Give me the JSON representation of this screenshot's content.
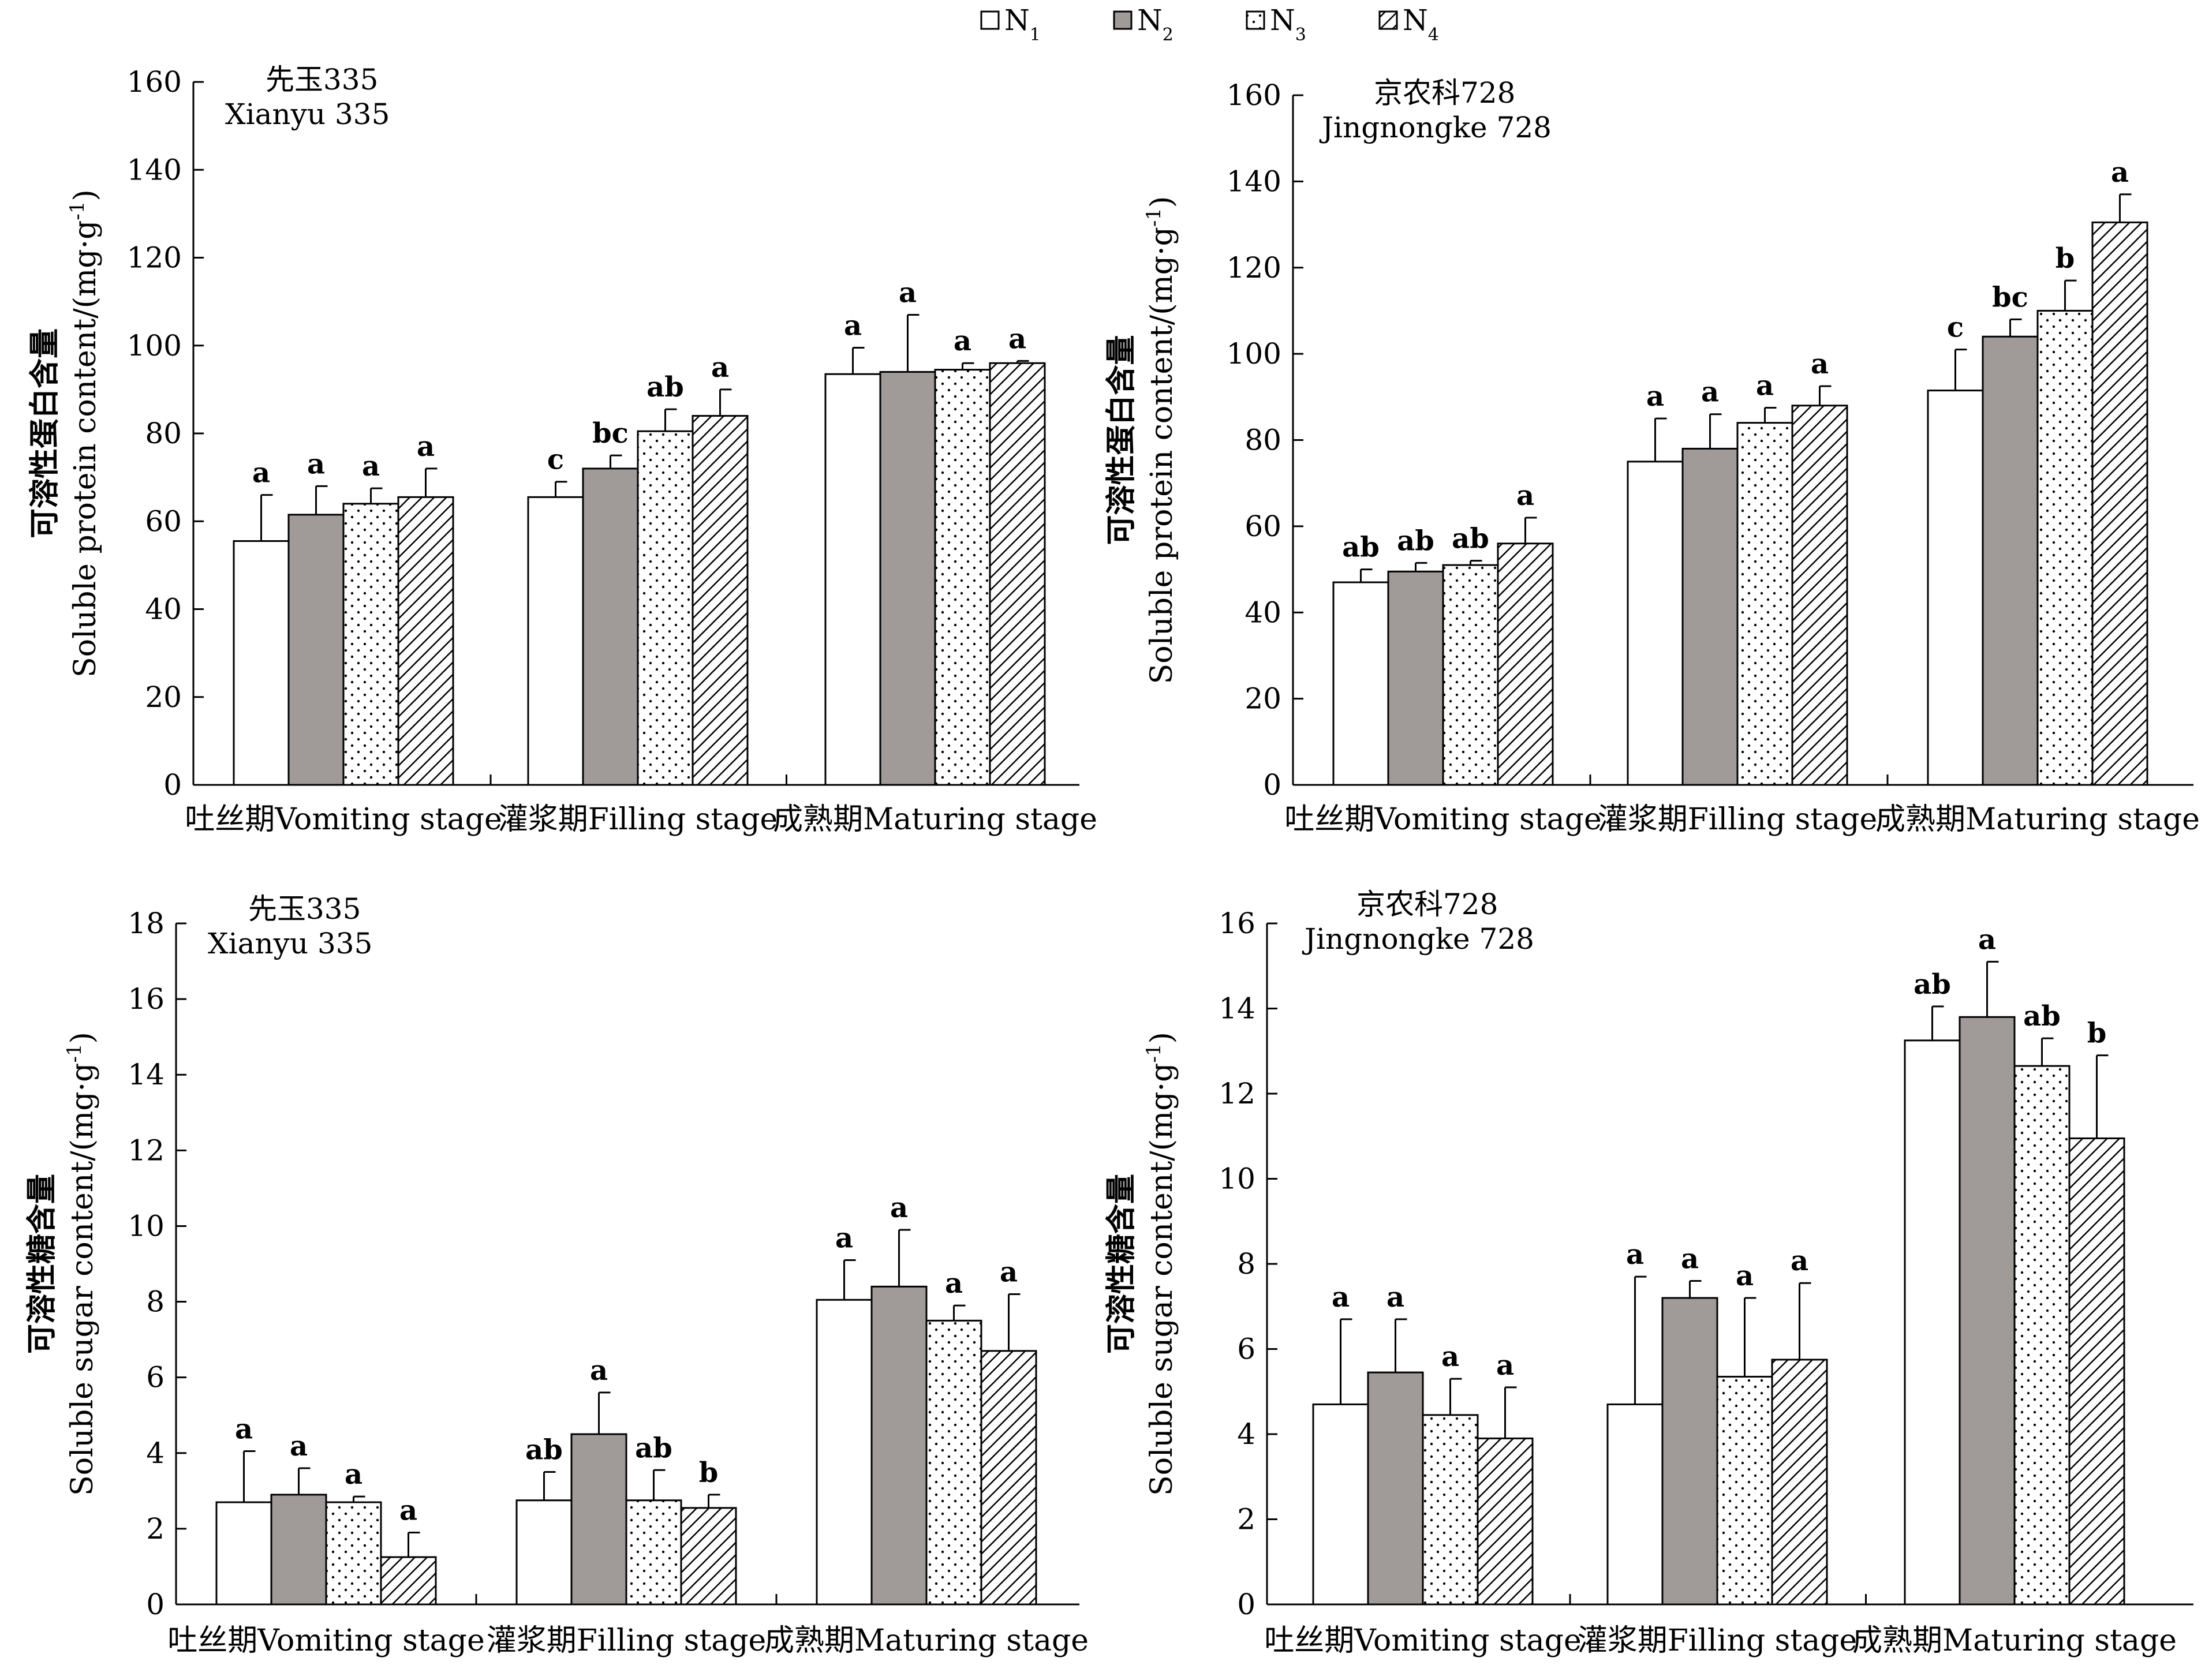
{
  "legend": {
    "items": [
      {
        "label": "N",
        "sub": "1",
        "pattern": "blank"
      },
      {
        "label": "N",
        "sub": "2",
        "pattern": "gray"
      },
      {
        "label": "N",
        "sub": "3",
        "pattern": "dots"
      },
      {
        "label": "N",
        "sub": "4",
        "pattern": "hatch"
      }
    ]
  },
  "colors": {
    "n2_fill": "#a09a99",
    "axis": "#000000"
  },
  "chart_data": [
    {
      "type": "bar",
      "title": "先玉335",
      "subtitle": "Xianyu 335",
      "ylabel_cn": "可溶性蛋白含量",
      "ylabel_en": "Soluble protein content/(mg·g",
      "ylabel_sup": "-1",
      "ylabel_tail": ")",
      "ylim": [
        0,
        160
      ],
      "yticks": [
        "0",
        "20",
        "40",
        "60",
        "80",
        "100",
        "120",
        "140",
        "160"
      ],
      "categories": [
        "吐丝期Vomiting stage",
        "灌浆期Filling stage",
        "成熟期Maturing stage"
      ],
      "series": [
        {
          "name": "N1",
          "values": [
            55.5,
            65.5,
            93.5
          ],
          "errors": [
            10.5,
            3.5,
            6
          ],
          "letters": [
            "a",
            "c",
            "a"
          ]
        },
        {
          "name": "N2",
          "values": [
            61.5,
            72,
            94
          ],
          "errors": [
            6.5,
            3,
            13
          ],
          "letters": [
            "a",
            "bc",
            "a"
          ]
        },
        {
          "name": "N3",
          "values": [
            64,
            80.5,
            94.5
          ],
          "errors": [
            3.5,
            5,
            1.5
          ],
          "letters": [
            "a",
            "ab",
            "a"
          ]
        },
        {
          "name": "N4",
          "values": [
            65.5,
            84,
            96
          ],
          "errors": [
            6.5,
            6,
            0.5
          ],
          "letters": [
            "a",
            "a",
            "a"
          ]
        }
      ]
    },
    {
      "type": "bar",
      "title": "京农科728",
      "subtitle": "Jingnongke 728",
      "ylabel_cn": "可溶性蛋白含量",
      "ylabel_en": "Soluble protein content/(mg·g",
      "ylabel_sup": "-1",
      "ylabel_tail": ")",
      "ylim": [
        0,
        160
      ],
      "yticks": [
        "0",
        "20",
        "40",
        "60",
        "80",
        "100",
        "120",
        "140",
        "160"
      ],
      "categories": [
        "吐丝期Vomiting stage",
        "灌浆期Filling stage",
        "成熟期Maturing stage"
      ],
      "series": [
        {
          "name": "N1",
          "values": [
            47,
            75,
            91.5
          ],
          "errors": [
            3,
            10,
            9.5
          ],
          "letters": [
            "ab",
            "a",
            "c"
          ]
        },
        {
          "name": "N2",
          "values": [
            49.5,
            78,
            104
          ],
          "errors": [
            2,
            8,
            4
          ],
          "letters": [
            "ab",
            "a",
            "bc"
          ]
        },
        {
          "name": "N3",
          "values": [
            51,
            84,
            110
          ],
          "errors": [
            1,
            3.5,
            7
          ],
          "letters": [
            "ab",
            "a",
            "b"
          ]
        },
        {
          "name": "N4",
          "values": [
            56,
            88,
            130.5
          ],
          "errors": [
            6,
            4.5,
            6.5
          ],
          "letters": [
            "a",
            "a",
            "a"
          ]
        }
      ]
    },
    {
      "type": "bar",
      "title": "先玉335",
      "subtitle": "Xianyu 335",
      "ylabel_cn": "可溶性糖含量",
      "ylabel_en": "Soluble sugar content/(mg·g",
      "ylabel_sup": "-1",
      "ylabel_tail": ")",
      "ylim": [
        0,
        18
      ],
      "yticks": [
        "0",
        "2",
        "4",
        "6",
        "8",
        "10",
        "12",
        "14",
        "16",
        "18"
      ],
      "categories": [
        "吐丝期Vomiting stage",
        "灌浆期Filling stage",
        "成熟期Maturing stage"
      ],
      "series": [
        {
          "name": "N1",
          "values": [
            2.7,
            2.75,
            8.05
          ],
          "errors": [
            1.35,
            0.75,
            1.05
          ],
          "letters": [
            "a",
            "ab",
            "a"
          ]
        },
        {
          "name": "N2",
          "values": [
            2.9,
            4.5,
            8.4
          ],
          "errors": [
            0.7,
            1.1,
            1.5
          ],
          "letters": [
            "a",
            "a",
            "a"
          ]
        },
        {
          "name": "N3",
          "values": [
            2.7,
            2.75,
            7.5
          ],
          "errors": [
            0.15,
            0.8,
            0.4
          ],
          "letters": [
            "a",
            "ab",
            "a"
          ]
        },
        {
          "name": "N4",
          "values": [
            1.25,
            2.55,
            6.7
          ],
          "errors": [
            0.65,
            0.35,
            1.5
          ],
          "letters": [
            "a",
            "b",
            "a"
          ]
        }
      ]
    },
    {
      "type": "bar",
      "title": "京农科728",
      "subtitle": "Jingnongke 728",
      "ylabel_cn": "可溶性糖含量",
      "ylabel_en": "Soluble sugar content/(mg·g",
      "ylabel_sup": "-1",
      "ylabel_tail": ")",
      "ylim": [
        0,
        16
      ],
      "yticks": [
        "0",
        "2",
        "4",
        "6",
        "8",
        "10",
        "12",
        "14",
        "16"
      ],
      "categories": [
        "吐丝期Vomiting stage",
        "灌浆期Filling stage",
        "成熟期Maturing stage"
      ],
      "series": [
        {
          "name": "N1",
          "values": [
            4.7,
            4.7,
            13.25
          ],
          "errors": [
            2,
            3,
            0.8
          ],
          "letters": [
            "a",
            "a",
            "ab"
          ]
        },
        {
          "name": "N2",
          "values": [
            5.45,
            7.2,
            13.8
          ],
          "errors": [
            1.25,
            0.4,
            1.3
          ],
          "letters": [
            "a",
            "a",
            "a"
          ]
        },
        {
          "name": "N3",
          "values": [
            4.45,
            5.35,
            12.65
          ],
          "errors": [
            0.85,
            1.85,
            0.65
          ],
          "letters": [
            "a",
            "a",
            "ab"
          ]
        },
        {
          "name": "N4",
          "values": [
            3.9,
            5.75,
            10.95
          ],
          "errors": [
            1.2,
            1.8,
            1.95
          ],
          "letters": [
            "a",
            "a",
            "b"
          ]
        }
      ]
    }
  ]
}
